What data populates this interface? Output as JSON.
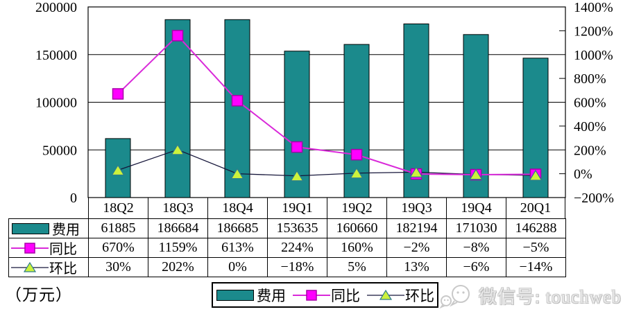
{
  "chart_data": {
    "type": "combo-bar-line",
    "categories": [
      "18Q2",
      "18Q3",
      "18Q4",
      "19Q1",
      "19Q2",
      "19Q3",
      "19Q4",
      "20Q1"
    ],
    "series": [
      {
        "name": "费用",
        "type": "bar",
        "axis": "left",
        "values": [
          61885,
          186684,
          186685,
          153635,
          160660,
          182194,
          171030,
          146288
        ]
      },
      {
        "name": "同比",
        "type": "line",
        "axis": "right",
        "marker": "square",
        "values": [
          670,
          1159,
          613,
          224,
          160,
          -2,
          -8,
          -5
        ]
      },
      {
        "name": "环比",
        "type": "line",
        "axis": "right",
        "marker": "triangle",
        "values": [
          30,
          202,
          0,
          -18,
          5,
          13,
          -6,
          -14
        ]
      }
    ],
    "left_axis": {
      "min": 0,
      "max": 200000,
      "step": 50000,
      "tick_labels": [
        "200000",
        "150000",
        "100000",
        "50000",
        "0"
      ]
    },
    "right_axis": {
      "min": -200,
      "max": 1400,
      "step": 200,
      "tick_labels": [
        "1400%",
        "1200%",
        "1000%",
        "800%",
        "600%",
        "400%",
        "200%",
        "0%",
        "−200%"
      ]
    },
    "grid": "horizontal-every-50000",
    "legend_position": "bottom-center",
    "unit_label": "（万元）",
    "colors": {
      "bar": "#1b8a8c",
      "bar_border": "#000000",
      "yoy_line": "#d929d9",
      "yoy_marker": "#ff00ff",
      "yoy_marker_border": "#a800a8",
      "qoq_line": "#16163a",
      "qoq_marker": "#ccf23c",
      "qoq_marker_border": "#2e7d8c"
    }
  },
  "table": {
    "row_labels": [
      "费用",
      "同比",
      "环比"
    ],
    "rows": [
      [
        "61885",
        "186684",
        "186685",
        "153635",
        "160660",
        "182194",
        "171030",
        "146288"
      ],
      [
        "670%",
        "1159%",
        "613%",
        "224%",
        "160%",
        "−2%",
        "−8%",
        "−5%"
      ],
      [
        "30%",
        "202%",
        "0%",
        "−18%",
        "5%",
        "13%",
        "−6%",
        "−14%"
      ]
    ]
  },
  "legend": {
    "items": [
      "费用",
      "同比",
      "环比"
    ]
  },
  "watermark": {
    "text": "微信号: touchweb"
  }
}
